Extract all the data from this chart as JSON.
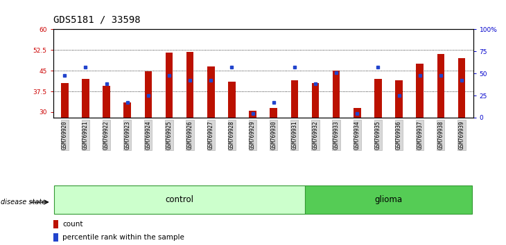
{
  "title": "GDS5181 / 33598",
  "samples": [
    "GSM769920",
    "GSM769921",
    "GSM769922",
    "GSM769923",
    "GSM769924",
    "GSM769925",
    "GSM769926",
    "GSM769927",
    "GSM769928",
    "GSM769929",
    "GSM769930",
    "GSM769931",
    "GSM769932",
    "GSM769933",
    "GSM769934",
    "GSM769935",
    "GSM769936",
    "GSM769937",
    "GSM769938",
    "GSM769939"
  ],
  "bar_values": [
    40.5,
    42.0,
    39.5,
    33.5,
    44.8,
    51.5,
    51.8,
    46.5,
    41.0,
    30.5,
    31.5,
    41.5,
    40.5,
    45.0,
    31.5,
    42.0,
    41.5,
    47.5,
    51.0,
    49.5
  ],
  "blue_pct": [
    48,
    57,
    38,
    17,
    25,
    48,
    42,
    42,
    57,
    5,
    17,
    57,
    38,
    51,
    5,
    57,
    25,
    48,
    48,
    42
  ],
  "group_control_count": 12,
  "group_glioma_count": 8,
  "ylim_left": [
    28,
    60
  ],
  "ylim_right": [
    0,
    100
  ],
  "yticks_left": [
    30,
    37.5,
    45,
    52.5,
    60
  ],
  "ytick_labels_left": [
    "30",
    "37.5",
    "45",
    "52.5",
    "60"
  ],
  "yticks_right": [
    0,
    25,
    50,
    75,
    100
  ],
  "ytick_labels_right": [
    "0",
    "25",
    "50",
    "75",
    "100%"
  ],
  "bar_color": "#bb1100",
  "blue_color": "#2244cc",
  "control_color": "#ccffcc",
  "glioma_color": "#55cc55",
  "control_label": "control",
  "glioma_label": "glioma",
  "disease_state_label": "disease state",
  "legend_count": "count",
  "legend_pct": "percentile rank within the sample",
  "grid_lines": [
    37.5,
    45.0,
    52.5
  ],
  "bar_width": 0.35,
  "title_fontsize": 10,
  "tick_fontsize": 6.5,
  "axis_color_left": "#cc0000",
  "axis_color_right": "#0000cc"
}
